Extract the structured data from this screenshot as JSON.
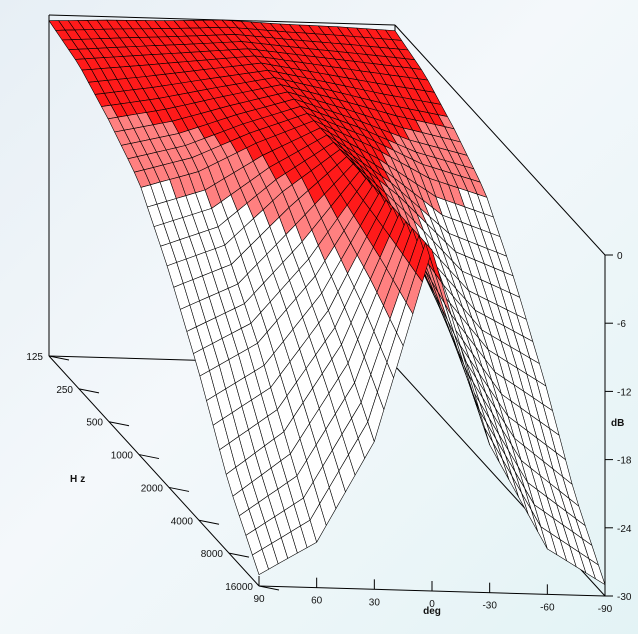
{
  "chart_data": {
    "type": "surface3d",
    "title": "",
    "x_axis": {
      "label": "Hz",
      "ticks": [
        "125",
        "250",
        "500",
        "1000",
        "2000",
        "4000",
        "8000",
        "16000"
      ],
      "scale": "log"
    },
    "y_axis": {
      "label": "deg",
      "ticks": [
        90,
        60,
        30,
        0,
        -30,
        -60,
        -90
      ],
      "range": [
        90,
        -90
      ]
    },
    "z_axis": {
      "label": "dB",
      "ticks": [
        0,
        -6,
        -12,
        -18,
        -24,
        -30
      ],
      "range": [
        -30,
        0
      ]
    },
    "bands": [
      {
        "range": [
          -3,
          0
        ],
        "color": "#ff1a1a"
      },
      {
        "range": [
          -6,
          -3
        ],
        "color": "#ff8080"
      },
      {
        "range": [
          -30,
          -6
        ],
        "color": "#ffffff"
      }
    ],
    "series": [
      {
        "frequency": "125",
        "values": [
          -0.5,
          -0.3,
          -0.2,
          0,
          -0.2,
          -0.3,
          -0.5
        ]
      },
      {
        "frequency": "250",
        "values": [
          -1.5,
          -1.0,
          -0.5,
          0,
          -0.5,
          -1.0,
          -1.5
        ]
      },
      {
        "frequency": "500",
        "values": [
          -3.5,
          -2.5,
          -1.2,
          0,
          -1.2,
          -2.5,
          -3.5
        ]
      },
      {
        "frequency": "1000",
        "values": [
          -6,
          -4.5,
          -2,
          0,
          -2,
          -4.5,
          -6
        ]
      },
      {
        "frequency": "2000",
        "values": [
          -11,
          -9,
          -4,
          0,
          -4,
          -9,
          -11
        ]
      },
      {
        "frequency": "4000",
        "values": [
          -17,
          -14,
          -8,
          0,
          -8,
          -14,
          -17
        ]
      },
      {
        "frequency": "8000",
        "values": [
          -24,
          -20,
          -12,
          0,
          -12,
          -20,
          -24
        ]
      },
      {
        "frequency": "16000",
        "values": [
          -29,
          -26,
          -17,
          0,
          -17,
          -26,
          -29
        ]
      }
    ]
  }
}
